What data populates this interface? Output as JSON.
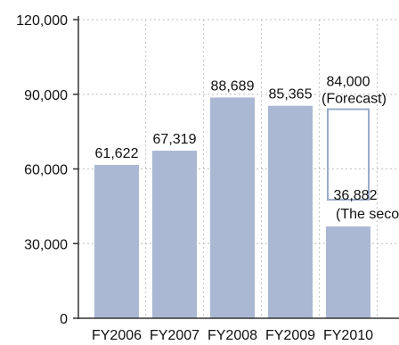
{
  "chart_data": {
    "type": "bar",
    "categories": [
      "FY2006",
      "FY2007",
      "FY2008",
      "FY2009",
      "FY2010"
    ],
    "values": [
      61622,
      67319,
      88689,
      85365,
      36882
    ],
    "value_labels": [
      "61,622",
      "67,319",
      "88,689",
      "85,365",
      "36,882"
    ],
    "forecast": {
      "category": "FY2010",
      "value": 84000,
      "label": "84,000",
      "note": "(Forecast)"
    },
    "annotations": [
      {
        "category": "FY2010",
        "text": "(The secon"
      }
    ],
    "ylim": [
      0,
      120000
    ],
    "yticks": [
      0,
      30000,
      60000,
      90000,
      120000
    ],
    "ytick_labels": [
      "0",
      "30,000",
      "60,000",
      "90,000",
      "120,000"
    ],
    "grid": true,
    "colors": {
      "bar": "#aab8d3",
      "forecast_outline": "#9aaccc",
      "grid": "#c9c9c9",
      "axis": "#333333",
      "text": "#111111"
    }
  }
}
